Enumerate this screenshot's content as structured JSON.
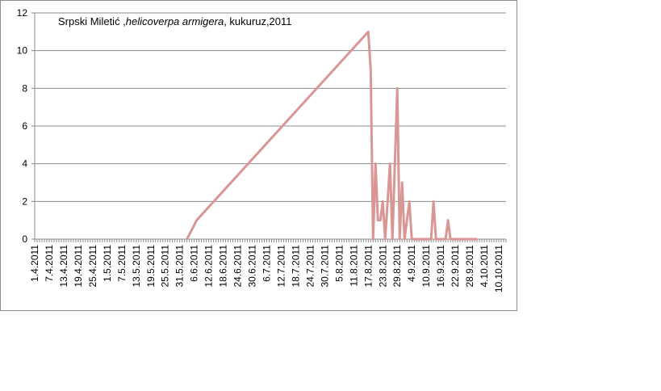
{
  "chart_data": {
    "type": "line",
    "title": {
      "prefix": "Srpski Miletić ,",
      "species": "helicoverpa armigera",
      "suffix": ", kukuruz,2011"
    },
    "xlabel": "",
    "ylabel": "",
    "ylim": [
      0,
      12
    ],
    "yticks": [
      "0",
      "2",
      "4",
      "6",
      "8",
      "10",
      "12"
    ],
    "grid": true,
    "legend": "none",
    "line_color": "#d99694",
    "x_tick_labels": [
      "1.4.2011",
      "7.4.2011",
      "13.4.2011",
      "19.4.2011",
      "25.4.2011",
      "1.5.2011",
      "7.5.2011",
      "13.5.2011",
      "19.5.2011",
      "25.5.2011",
      "31.5.2011",
      "6.6.2011",
      "12.6.2011",
      "18.6.2011",
      "24.6.2011",
      "30.6.2011",
      "6.7.2011",
      "12.7.2011",
      "18.7.2011",
      "24.7.2011",
      "30.7.2011",
      "5.8.2011",
      "11.8.2011",
      "17.8.2011",
      "23.8.2011",
      "29.8.2011",
      "4.9.2011",
      "10.9.2011",
      "16.9.2011",
      "22.9.2011",
      "28.9.2011",
      "4.10.2011",
      "10.10.2011"
    ],
    "x_start": "1.4.2011",
    "x_end": "13.10.2011",
    "line_start": "3.6.2011",
    "line_end": "1.10.2011",
    "points": [
      {
        "x": "7.6.2011",
        "y": 1
      },
      {
        "x": "17.8.2011",
        "y": 11
      },
      {
        "x": "18.8.2011",
        "y": 9
      },
      {
        "x": "19.8.2011",
        "y": 0
      },
      {
        "x": "20.8.2011",
        "y": 4
      },
      {
        "x": "21.8.2011",
        "y": 1
      },
      {
        "x": "22.8.2011",
        "y": 1
      },
      {
        "x": "23.8.2011",
        "y": 2
      },
      {
        "x": "24.8.2011",
        "y": 0
      },
      {
        "x": "26.8.2011",
        "y": 4
      },
      {
        "x": "27.8.2011",
        "y": 0
      },
      {
        "x": "29.8.2011",
        "y": 8
      },
      {
        "x": "30.8.2011",
        "y": 0
      },
      {
        "x": "31.8.2011",
        "y": 3
      },
      {
        "x": "1.9.2011",
        "y": 0
      },
      {
        "x": "3.9.2011",
        "y": 2
      },
      {
        "x": "4.9.2011",
        "y": 0
      },
      {
        "x": "12.9.2011",
        "y": 0
      },
      {
        "x": "13.9.2011",
        "y": 2
      },
      {
        "x": "14.9.2011",
        "y": 0
      },
      {
        "x": "18.9.2011",
        "y": 0
      },
      {
        "x": "19.9.2011",
        "y": 1
      },
      {
        "x": "20.9.2011",
        "y": 0
      }
    ]
  }
}
